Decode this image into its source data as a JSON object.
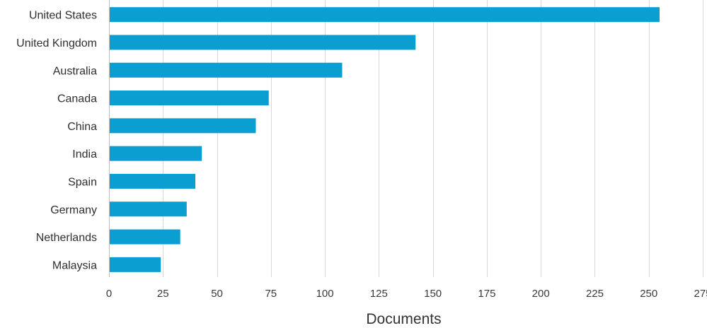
{
  "chart_data": {
    "type": "bar",
    "orientation": "horizontal",
    "categories": [
      "United States",
      "United Kingdom",
      "Australia",
      "Canada",
      "China",
      "India",
      "Spain",
      "Germany",
      "Netherlands",
      "Malaysia"
    ],
    "values": [
      255,
      142,
      108,
      74,
      68,
      43,
      40,
      36,
      33,
      24
    ],
    "title": "",
    "xlabel": "Documents",
    "ylabel": "",
    "xlim": [
      0,
      275
    ],
    "xticks": [
      0,
      25,
      50,
      75,
      100,
      125,
      150,
      175,
      200,
      225,
      250,
      275
    ],
    "grid": true,
    "bar_color": "#0b9fd1",
    "grid_color": "#d9d9d9",
    "legend": "none"
  }
}
